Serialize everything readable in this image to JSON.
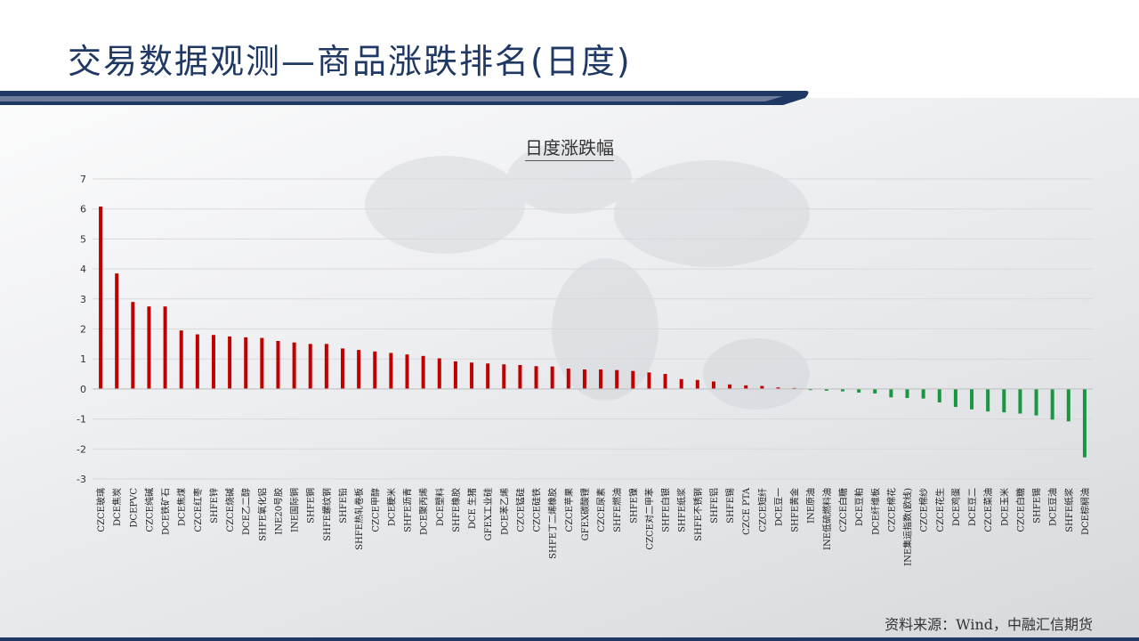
{
  "header": {
    "title": "交易数据观测—商品涨跌排名(日度)"
  },
  "footer": {
    "source": "资料来源：Wind，中融汇信期货"
  },
  "colors": {
    "positive": "#c00000",
    "negative": "#1a9641",
    "title": "#1f3864"
  },
  "chart_data": {
    "type": "bar",
    "title": "日度涨跌幅",
    "xlabel": "",
    "ylabel": "",
    "ylim": [
      -3,
      7
    ],
    "yticks": [
      7,
      6,
      5,
      4,
      3,
      2,
      1,
      0,
      -1,
      -2,
      -3
    ],
    "grid": true,
    "legend": "none",
    "categories": [
      "CZCE玻璃",
      "DCE焦炭",
      "DCEPVC",
      "CZCE纯碱",
      "DCE铁矿石",
      "DCE焦煤",
      "CZCE红枣",
      "SHFE锌",
      "CZCE烧碱",
      "DCE乙二醇",
      "SHFE氧化铝",
      "INE20号胶",
      "INE国际铜",
      "SHFE铜",
      "SHFE螺纹钢",
      "SHFE铅",
      "SHFE热轧卷板",
      "CZCE甲醇",
      "DCE粳米",
      "SHFE沥青",
      "DCE聚丙烯",
      "DCE塑料",
      "SHFE橡胶",
      "DCE 生猪",
      "GFEX工业硅",
      "DCE苯乙烯",
      "CZCE锰硅",
      "CZCE硅铁",
      "SHFE丁二烯橡胶",
      "CZCE苹果",
      "GFEX碳酸锂",
      "CZCE尿素",
      "SHFE燃油",
      "SHFE镍",
      "CZCE对二甲苯",
      "SHFE白银",
      "SHFE纸浆",
      "SHFE不锈钢",
      "SHFE铝",
      "SHFE锡",
      "CZCE PTA",
      "CZCE短纤",
      "DCE豆一",
      "SHFE黄金",
      "INE原油",
      "INE低硫燃料油",
      "CZCE白糖",
      "DCE豆粕",
      "DCE纤维板",
      "CZCE棉花",
      "INE集运指数(欧线)",
      "CZCE棉纱",
      "CZCE花生",
      "DCE鸡蛋",
      "DCE豆二",
      "CZCE菜油",
      "DCE玉米",
      "CZCE白糖",
      "SHFE锡",
      "DCE豆油",
      "SHFE纸浆",
      "DCE棕榈油"
    ],
    "values": [
      6.08,
      3.85,
      2.9,
      2.75,
      2.75,
      1.95,
      1.82,
      1.8,
      1.75,
      1.72,
      1.7,
      1.6,
      1.55,
      1.5,
      1.5,
      1.35,
      1.3,
      1.25,
      1.2,
      1.15,
      1.1,
      1.02,
      0.92,
      0.88,
      0.85,
      0.82,
      0.8,
      0.76,
      0.75,
      0.68,
      0.65,
      0.65,
      0.63,
      0.6,
      0.55,
      0.5,
      0.33,
      0.3,
      0.25,
      0.15,
      0.12,
      0.1,
      0.05,
      0.03,
      -0.04,
      -0.06,
      -0.08,
      -0.12,
      -0.15,
      -0.28,
      -0.3,
      -0.32,
      -0.45,
      -0.6,
      -0.68,
      -0.75,
      -0.78,
      -0.82,
      -0.88,
      -1.02,
      -1.08,
      -2.28
    ]
  }
}
